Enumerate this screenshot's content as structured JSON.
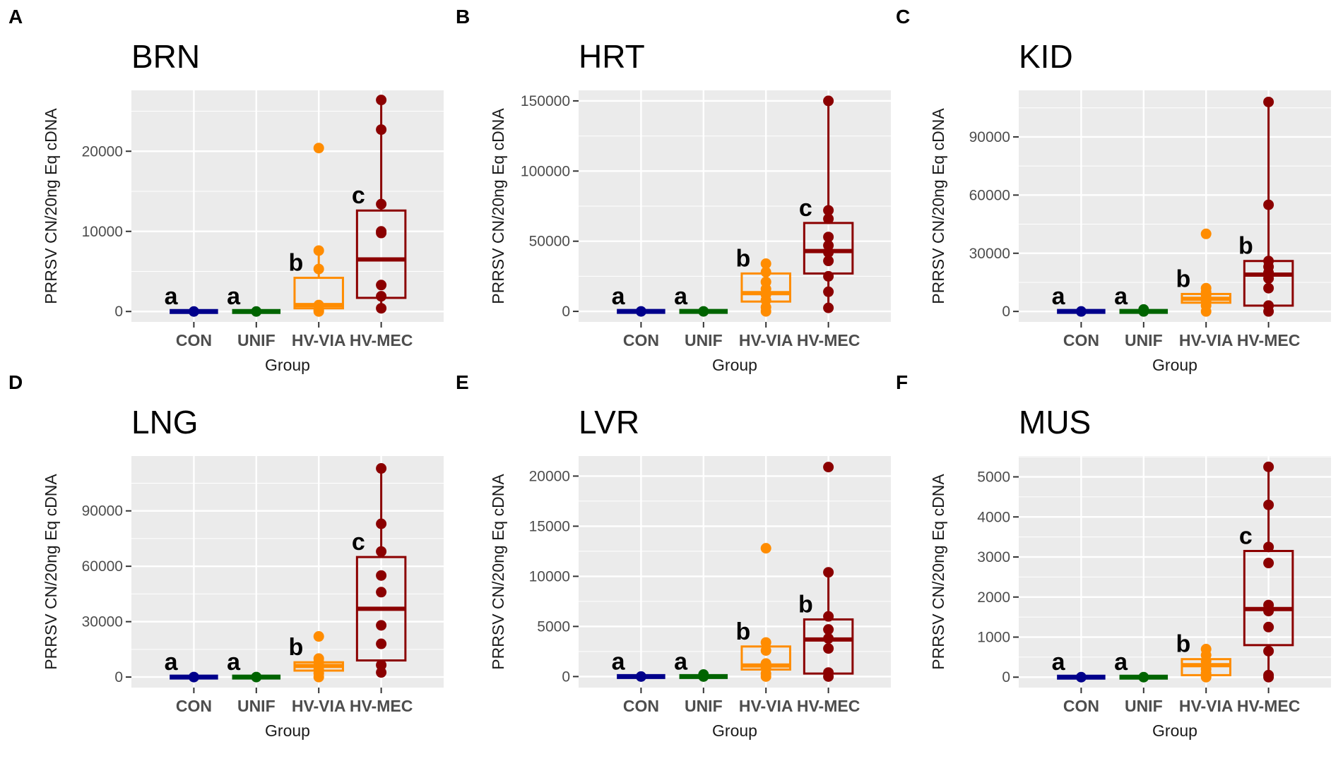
{
  "figure": {
    "colors": {
      "CON": "#00008B",
      "UNIF": "#006400",
      "HV-VIA": "#FF8C00",
      "HV-MEC": "#8B0000",
      "panel_bg": "#EBEBEB",
      "grid": "#FFFFFF"
    }
  },
  "chart_data": [
    {
      "panel_letter": "A",
      "type": "box",
      "title": "BRN",
      "xlabel": "Group",
      "ylabel": "PRRSV CN/20ng Eq cDNA",
      "categories": [
        "CON",
        "UNIF",
        "HV-VIA",
        "HV-MEC"
      ],
      "ylim": [
        -1300,
        27600
      ],
      "yticks": [
        0,
        10000,
        20000
      ],
      "ytick_labels": [
        "0",
        "10000",
        "20000"
      ],
      "boxes": [
        {
          "q1": 0,
          "median": 0,
          "q3": 0,
          "whisker_low": 0,
          "whisker_high": 0
        },
        {
          "q1": 0,
          "median": 0,
          "q3": 0,
          "whisker_low": 0,
          "whisker_high": 0
        },
        {
          "q1": 400,
          "median": 800,
          "q3": 4200,
          "whisker_low": 0,
          "whisker_high": 7600
        },
        {
          "q1": 1700,
          "median": 6500,
          "q3": 12600,
          "whisker_low": 400,
          "whisker_high": 26400
        }
      ],
      "points": [
        [
          0
        ],
        [
          0
        ],
        [
          0,
          200,
          800,
          5300,
          7600,
          20400
        ],
        [
          400,
          1900,
          3300,
          9800,
          10000,
          13400,
          22700,
          26400
        ]
      ],
      "labels": [
        "a",
        "a",
        "b",
        "c"
      ]
    },
    {
      "panel_letter": "B",
      "type": "box",
      "title": "HRT",
      "xlabel": "Group",
      "ylabel": "PRRSV CN/20ng Eq cDNA",
      "categories": [
        "CON",
        "UNIF",
        "HV-VIA",
        "HV-MEC"
      ],
      "ylim": [
        -7500,
        157500
      ],
      "yticks": [
        0,
        50000,
        100000,
        150000
      ],
      "ytick_labels": [
        "0",
        "50000",
        "100000",
        "150000"
      ],
      "boxes": [
        {
          "q1": 0,
          "median": 0,
          "q3": 0,
          "whisker_low": 0,
          "whisker_high": 0
        },
        {
          "q1": 0,
          "median": 0,
          "q3": 0,
          "whisker_low": 0,
          "whisker_high": 0
        },
        {
          "q1": 7000,
          "median": 13000,
          "q3": 27000,
          "whisker_low": 0,
          "whisker_high": 35000
        },
        {
          "q1": 27000,
          "median": 43000,
          "q3": 63000,
          "whisker_low": 2500,
          "whisker_high": 150000
        }
      ],
      "points": [
        [
          0
        ],
        [
          0
        ],
        [
          0,
          3000,
          8000,
          12000,
          16000,
          21000,
          28000,
          34000
        ],
        [
          2500,
          14000,
          25000,
          36000,
          42000,
          47000,
          53000,
          66000,
          72000,
          150000
        ]
      ],
      "labels": [
        "a",
        "a",
        "b",
        "c"
      ]
    },
    {
      "panel_letter": "C",
      "type": "box",
      "title": "KID",
      "xlabel": "Group",
      "ylabel": "PRRSV CN/20ng Eq cDNA",
      "categories": [
        "CON",
        "UNIF",
        "HV-VIA",
        "HV-MEC"
      ],
      "ylim": [
        -5400,
        114000
      ],
      "yticks": [
        0,
        30000,
        60000,
        90000
      ],
      "ytick_labels": [
        "0",
        "30000",
        "60000",
        "90000"
      ],
      "boxes": [
        {
          "q1": 0,
          "median": 0,
          "q3": 0,
          "whisker_low": 0,
          "whisker_high": 0
        },
        {
          "q1": 0,
          "median": 0,
          "q3": 0,
          "whisker_low": 0,
          "whisker_high": 0
        },
        {
          "q1": 4500,
          "median": 6500,
          "q3": 9000,
          "whisker_low": 0,
          "whisker_high": 12000
        },
        {
          "q1": 3000,
          "median": 19000,
          "q3": 26000,
          "whisker_low": 0,
          "whisker_high": 108000
        }
      ],
      "points": [
        [
          0
        ],
        [
          0,
          1000
        ],
        [
          0,
          3000,
          5500,
          7000,
          8500,
          10000,
          12000,
          40000
        ],
        [
          0,
          3000,
          12000,
          17000,
          20000,
          23000,
          26000,
          55000,
          108000
        ]
      ],
      "labels": [
        "a",
        "a",
        "b",
        "b"
      ]
    },
    {
      "panel_letter": "D",
      "type": "box",
      "title": "LNG",
      "xlabel": "Group",
      "ylabel": "PRRSV CN/20ng Eq cDNA",
      "categories": [
        "CON",
        "UNIF",
        "HV-VIA",
        "HV-MEC"
      ],
      "ylim": [
        -5700,
        119700
      ],
      "yticks": [
        0,
        30000,
        60000,
        90000
      ],
      "ytick_labels": [
        "0",
        "30000",
        "60000",
        "90000"
      ],
      "boxes": [
        {
          "q1": 0,
          "median": 0,
          "q3": 0,
          "whisker_low": 0,
          "whisker_high": 0
        },
        {
          "q1": 0,
          "median": 0,
          "q3": 0,
          "whisker_low": 0,
          "whisker_high": 0
        },
        {
          "q1": 3500,
          "median": 6000,
          "q3": 8000,
          "whisker_low": 0,
          "whisker_high": 10500
        },
        {
          "q1": 9000,
          "median": 37000,
          "q3": 65000,
          "whisker_low": 2500,
          "whisker_high": 113000
        }
      ],
      "points": [
        [
          0
        ],
        [
          0
        ],
        [
          0,
          2000,
          4000,
          6000,
          8000,
          10000,
          22000
        ],
        [
          2500,
          6500,
          18000,
          28000,
          46000,
          55000,
          68000,
          83000,
          113000
        ]
      ],
      "labels": [
        "a",
        "a",
        "b",
        "c"
      ]
    },
    {
      "panel_letter": "E",
      "type": "box",
      "title": "LVR",
      "xlabel": "Group",
      "ylabel": "PRRSV CN/20ng Eq cDNA",
      "categories": [
        "CON",
        "UNIF",
        "HV-VIA",
        "HV-MEC"
      ],
      "ylim": [
        -1100,
        22000
      ],
      "yticks": [
        0,
        5000,
        10000,
        15000,
        20000
      ],
      "ytick_labels": [
        "0",
        "5000",
        "10000",
        "15000",
        "20000"
      ],
      "boxes": [
        {
          "q1": 0,
          "median": 0,
          "q3": 0,
          "whisker_low": 0,
          "whisker_high": 0
        },
        {
          "q1": 0,
          "median": 0,
          "q3": 0,
          "whisker_low": 0,
          "whisker_high": 0
        },
        {
          "q1": 700,
          "median": 1100,
          "q3": 3000,
          "whisker_low": 0,
          "whisker_high": 3400
        },
        {
          "q1": 300,
          "median": 3700,
          "q3": 5700,
          "whisker_low": 0,
          "whisker_high": 10400
        }
      ],
      "points": [
        [
          0
        ],
        [
          0,
          200
        ],
        [
          0,
          300,
          800,
          1300,
          2600,
          3400,
          12800
        ],
        [
          0,
          400,
          2800,
          3800,
          4700,
          6000,
          10400,
          20900
        ]
      ],
      "labels": [
        "a",
        "a",
        "b",
        "b"
      ]
    },
    {
      "panel_letter": "F",
      "type": "box",
      "title": "MUS",
      "xlabel": "Group",
      "ylabel": "PRRSV CN/20ng Eq cDNA",
      "categories": [
        "CON",
        "UNIF",
        "HV-VIA",
        "HV-MEC"
      ],
      "ylim": [
        -260,
        5520
      ],
      "yticks": [
        0,
        1000,
        2000,
        3000,
        4000,
        5000
      ],
      "ytick_labels": [
        "0",
        "1000",
        "2000",
        "3000",
        "4000",
        "5000"
      ],
      "boxes": [
        {
          "q1": 0,
          "median": 0,
          "q3": 0,
          "whisker_low": 0,
          "whisker_high": 0
        },
        {
          "q1": 0,
          "median": 0,
          "q3": 0,
          "whisker_low": 0,
          "whisker_high": 0
        },
        {
          "q1": 50,
          "median": 300,
          "q3": 450,
          "whisker_low": 0,
          "whisker_high": 700
        },
        {
          "q1": 800,
          "median": 1700,
          "q3": 3150,
          "whisker_low": 0,
          "whisker_high": 5250
        }
      ],
      "points": [
        [
          0
        ],
        [
          0
        ],
        [
          0,
          100,
          200,
          300,
          400,
          550,
          700
        ],
        [
          0,
          50,
          650,
          1250,
          1650,
          1800,
          2850,
          3250,
          4300,
          5250
        ]
      ],
      "labels": [
        "a",
        "a",
        "b",
        "c"
      ]
    }
  ]
}
